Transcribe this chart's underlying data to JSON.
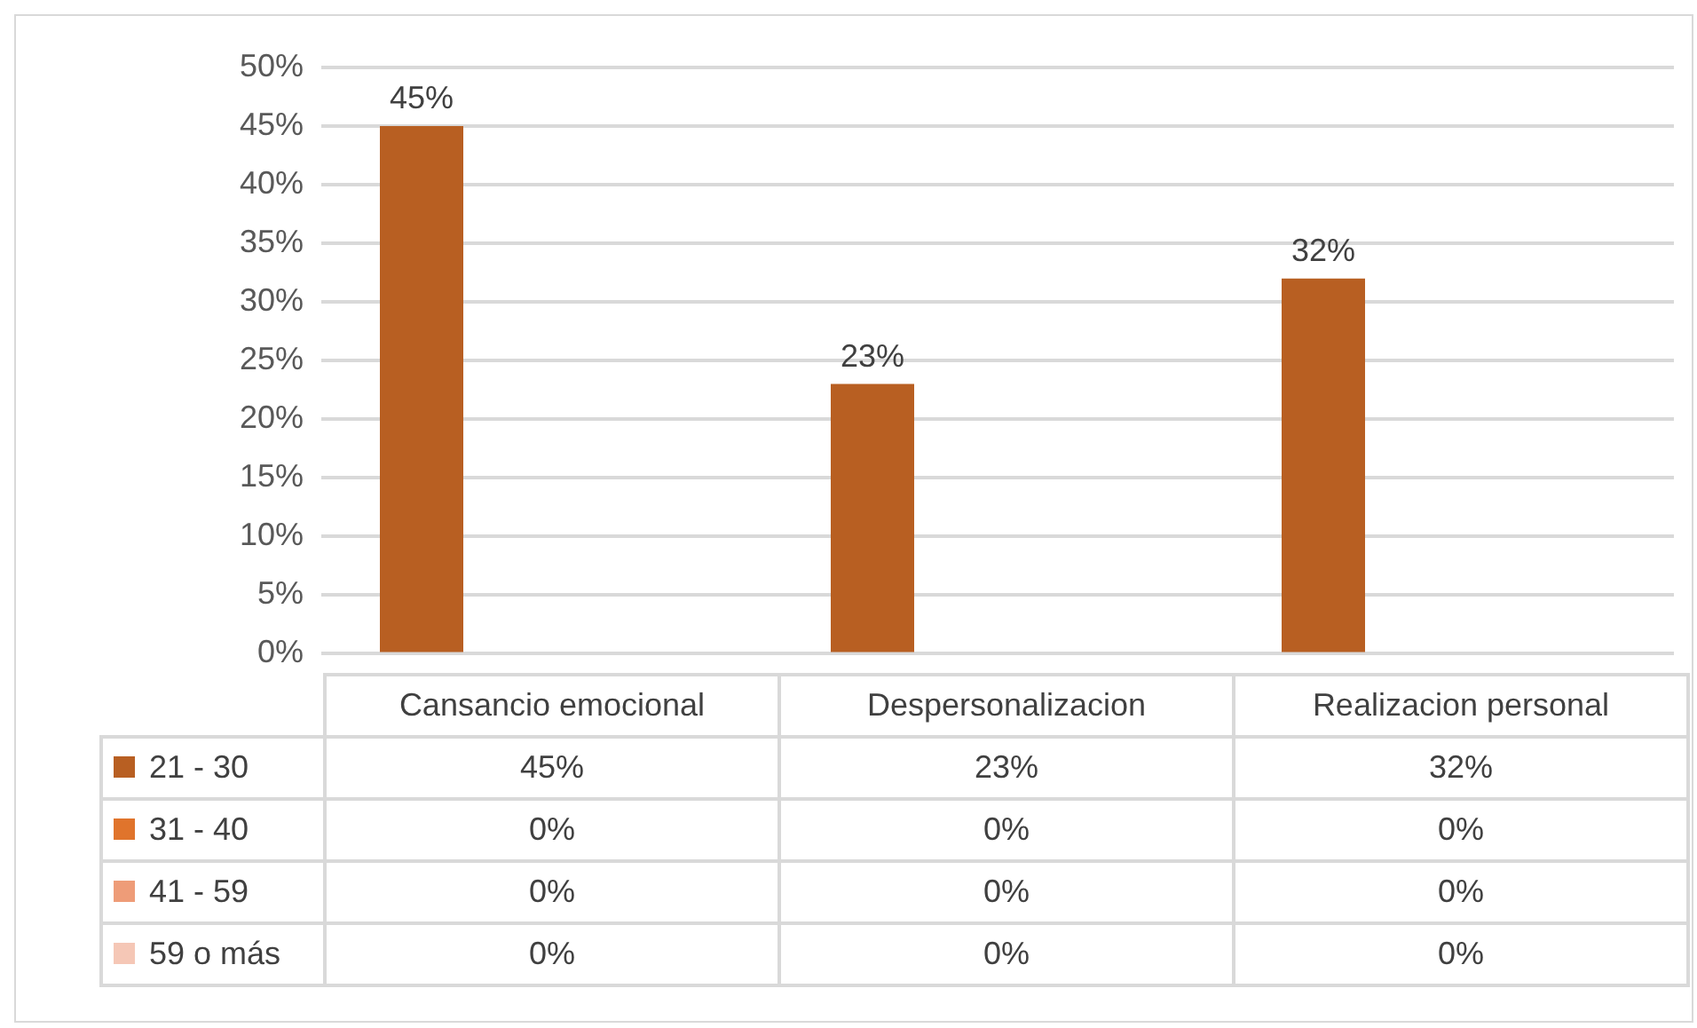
{
  "chart_data": {
    "type": "bar",
    "categories": [
      "Cansancio emocional",
      "Despersonalizacion",
      "Realizacion personal"
    ],
    "series": [
      {
        "name": "21 - 30",
        "color": "#b85f22",
        "values": [
          45,
          23,
          32
        ],
        "value_labels": [
          "45%",
          "23%",
          "32%"
        ]
      },
      {
        "name": "31 - 40",
        "color": "#e0742c",
        "values": [
          0,
          0,
          0
        ],
        "value_labels": [
          "0%",
          "0%",
          "0%"
        ]
      },
      {
        "name": "41 - 59",
        "color": "#ee9c78",
        "values": [
          0,
          0,
          0
        ],
        "value_labels": [
          "0%",
          "0%",
          "0%"
        ]
      },
      {
        "name": "59 o más",
        "color": "#f5c7b6",
        "values": [
          0,
          0,
          0
        ],
        "value_labels": [
          "0%",
          "0%",
          "0%"
        ]
      }
    ],
    "ylim": [
      0,
      50
    ],
    "yticks": [
      {
        "value": 0,
        "label": "0%"
      },
      {
        "value": 5,
        "label": "5%"
      },
      {
        "value": 10,
        "label": "10%"
      },
      {
        "value": 15,
        "label": "15%"
      },
      {
        "value": 20,
        "label": "20%"
      },
      {
        "value": 25,
        "label": "25%"
      },
      {
        "value": 30,
        "label": "30%"
      },
      {
        "value": 35,
        "label": "35%"
      },
      {
        "value": 40,
        "label": "40%"
      },
      {
        "value": 45,
        "label": "45%"
      },
      {
        "value": 50,
        "label": "50%"
      }
    ],
    "grid": "y",
    "legend": "bottom left"
  }
}
